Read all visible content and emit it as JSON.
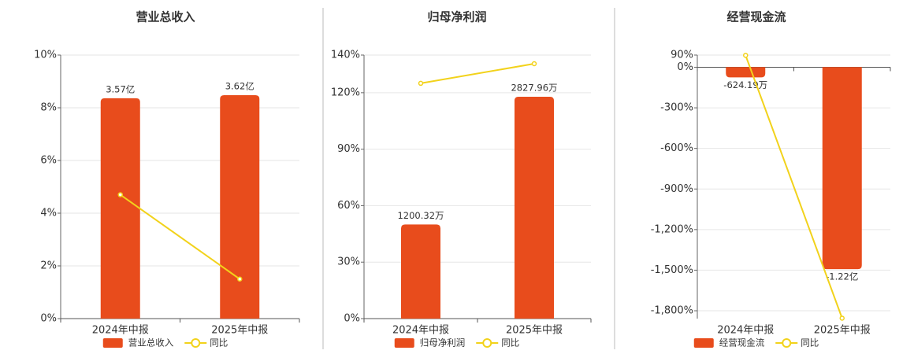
{
  "chart_data": [
    {
      "type": "bar",
      "title": "营业总收入",
      "categories": [
        "2024年中报",
        "2025年中报"
      ],
      "series": [
        {
          "name": "营业总收入",
          "type": "bar",
          "axis": "y2",
          "color": "#e84c1c",
          "values": [
            357000000,
            362000000
          ],
          "value_labels": [
            "3.57亿",
            "3.62亿"
          ]
        },
        {
          "name": "同比",
          "type": "line",
          "color": "#f2d21b",
          "values": [
            4.7,
            1.5
          ]
        }
      ],
      "ylim": [
        0,
        10
      ],
      "yticks": [
        {
          "value": 0,
          "label": "0%"
        },
        {
          "value": 2,
          "label": "2%"
        },
        {
          "value": 4,
          "label": "4%"
        },
        {
          "value": 6,
          "label": "6%"
        },
        {
          "value": 8,
          "label": "8%"
        },
        {
          "value": 10,
          "label": "10%"
        }
      ],
      "y2lim": [
        0,
        427000000
      ],
      "grid": true,
      "legend": "bottom"
    },
    {
      "type": "bar",
      "title": "归母净利润",
      "categories": [
        "2024年中报",
        "2025年中报"
      ],
      "series": [
        {
          "name": "归母净利润",
          "type": "bar",
          "axis": "y2",
          "color": "#e84c1c",
          "values": [
            12003200,
            28279600
          ],
          "value_labels": [
            "1200.32万",
            "2827.96万"
          ]
        },
        {
          "name": "同比",
          "type": "line",
          "color": "#f2d21b",
          "values": [
            125,
            135.4
          ]
        }
      ],
      "ylim": [
        0,
        140
      ],
      "yticks": [
        {
          "value": 0,
          "label": "0%"
        },
        {
          "value": 30,
          "label": "30%"
        },
        {
          "value": 60,
          "label": "60%"
        },
        {
          "value": 90,
          "label": "90%"
        },
        {
          "value": 120,
          "label": "120%"
        },
        {
          "value": 140,
          "label": "140%"
        }
      ],
      "y2lim": [
        0,
        33600000
      ],
      "grid": true,
      "legend": "bottom"
    },
    {
      "type": "bar",
      "title": "经营现金流",
      "categories": [
        "2024年中报",
        "2025年中报"
      ],
      "series": [
        {
          "name": "经营现金流",
          "type": "bar",
          "axis": "y2",
          "color": "#e84c1c",
          "values": [
            -6241900,
            -122000000
          ],
          "value_labels": [
            "-624.19万",
            "-1.22亿"
          ]
        },
        {
          "name": "同比",
          "type": "line",
          "color": "#f2d21b",
          "values": [
            88,
            -1855
          ]
        }
      ],
      "ylim": [
        -1858,
        90
      ],
      "yticks": [
        {
          "value": -1800,
          "label": "-1,800%"
        },
        {
          "value": -1500,
          "label": "-1,500%"
        },
        {
          "value": -1200,
          "label": "-1,200%"
        },
        {
          "value": -900,
          "label": "-900%"
        },
        {
          "value": -600,
          "label": "-600%"
        },
        {
          "value": -300,
          "label": "-300%"
        },
        {
          "value": 0,
          "label": "0%"
        },
        {
          "value": 90,
          "label": "90%"
        }
      ],
      "y2lim": [
        -151900000,
        7260000
      ],
      "grid": true,
      "legend": "bottom"
    }
  ]
}
